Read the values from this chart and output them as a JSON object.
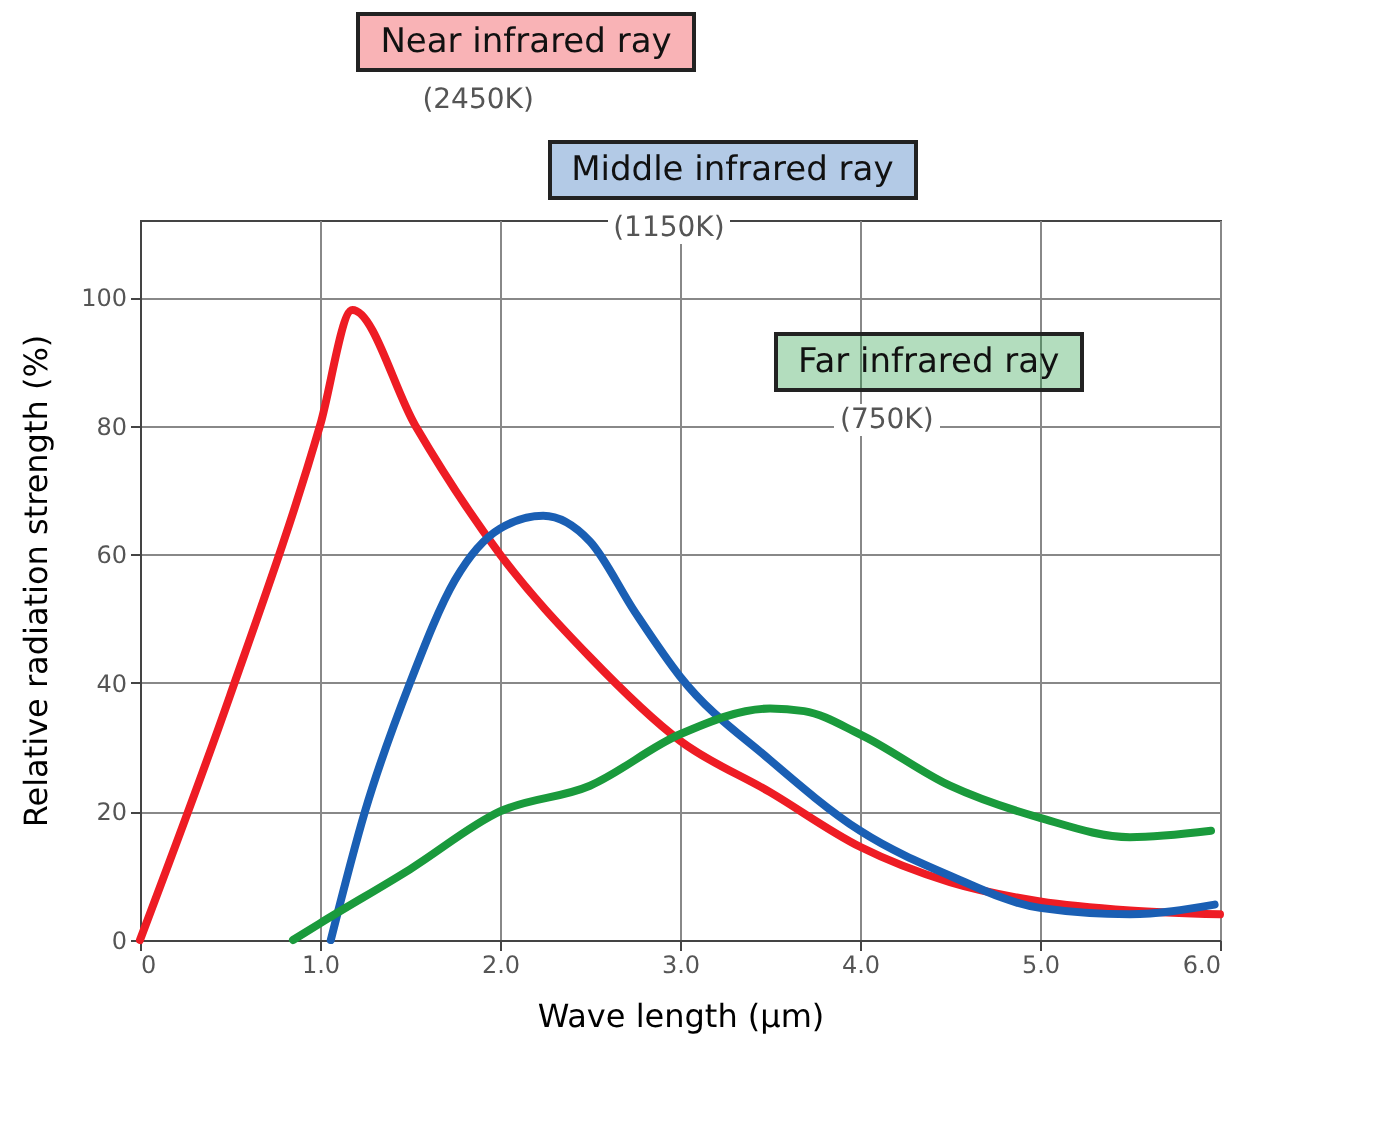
{
  "chart_data": {
    "type": "line",
    "xlabel": "Wave length (µm)",
    "ylabel": "Relative radiation strength (%)",
    "xlim": [
      0,
      6
    ],
    "xticks": [
      0,
      {
        "value": 1,
        "label": "1.0"
      },
      {
        "value": 2,
        "label": "2.0"
      },
      {
        "value": 3,
        "label": "3.0"
      },
      {
        "value": 4,
        "label": "4.0"
      },
      {
        "value": 5,
        "label": "5.0"
      },
      {
        "value": 6,
        "label": "6.0"
      }
    ],
    "ylim": [
      0,
      112
    ],
    "yticks": [
      0,
      20,
      40,
      60,
      80,
      100
    ],
    "grid": true,
    "annotations": [
      "(2450K)",
      "(1150K)",
      "(750K)"
    ],
    "series": [
      {
        "name": "Near infrared ray",
        "color": "#ee1c24",
        "x": [
          0,
          0.5,
          1.0,
          1.18,
          1.53,
          2.0,
          2.5,
          3.0,
          3.5,
          4.0,
          4.5,
          5.0,
          5.5,
          6.0
        ],
        "values": [
          0,
          38,
          80,
          98,
          80,
          60,
          44,
          31,
          23,
          14.5,
          9,
          6,
          4.6,
          4
        ]
      },
      {
        "name": "Middle infrared ray",
        "color": "#1a5fb4",
        "x": [
          1.06,
          1.25,
          1.5,
          1.75,
          2.0,
          2.24,
          2.5,
          2.75,
          3.0,
          3.5,
          4.0,
          4.5,
          5.0,
          5.5,
          5.97
        ],
        "values": [
          0,
          20,
          40,
          56,
          64,
          66,
          62,
          51,
          41,
          28,
          17,
          10,
          5,
          4,
          5.5
        ]
      },
      {
        "name": "Far infrared ray",
        "color": "#1a9a3c",
        "x": [
          0.85,
          1.0,
          1.5,
          2.0,
          2.5,
          3.0,
          3.5,
          3.69,
          4.0,
          4.5,
          5.0,
          5.5,
          5.95
        ],
        "values": [
          0,
          2.6,
          11,
          20,
          24,
          32,
          36,
          35.6,
          32,
          24,
          19,
          16,
          17
        ]
      }
    ]
  }
}
